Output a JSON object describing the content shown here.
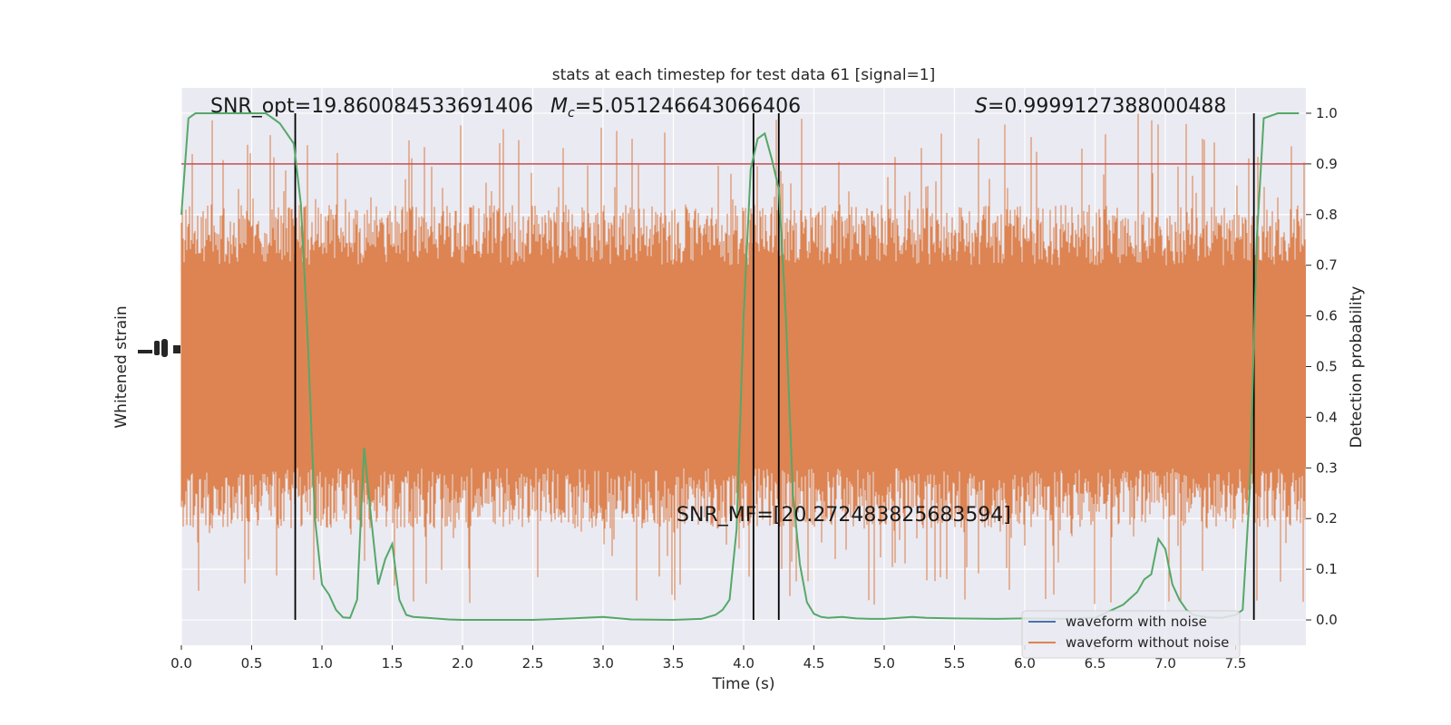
{
  "chart_data": {
    "type": "line",
    "title": "stats at each timestep for test data 61 [signal=1]",
    "xlabel": "Time (s)",
    "ylabel_left": "Whitened strain",
    "ylabel_right": "Detection probability",
    "xlim": [
      0,
      8
    ],
    "ylim_right": [
      -0.05,
      1.05
    ],
    "x_ticks": [
      "0.0",
      "0.5",
      "1.0",
      "1.5",
      "2.0",
      "2.5",
      "3.0",
      "3.5",
      "4.0",
      "4.5",
      "5.0",
      "5.5",
      "6.0",
      "6.5",
      "7.0",
      "7.5"
    ],
    "x_tick_values": [
      0,
      0.5,
      1,
      1.5,
      2,
      2.5,
      3,
      3.5,
      4,
      4.5,
      5,
      5.5,
      6,
      6.5,
      7,
      7.5
    ],
    "y_ticks_right": [
      "0.0",
      "0.1",
      "0.2",
      "0.3",
      "0.4",
      "0.5",
      "0.6",
      "0.7",
      "0.8",
      "0.9",
      "1.0"
    ],
    "y_tick_values_right": [
      0,
      0.1,
      0.2,
      0.3,
      0.4,
      0.5,
      0.6,
      0.7,
      0.8,
      0.9,
      1.0
    ],
    "threshold": 0.9,
    "vertical_lines_x": [
      0.81,
      4.07,
      4.25,
      7.63
    ],
    "annotations": {
      "snr_opt": "SNR_opt=19.860084533691406",
      "mc_symbol": "M",
      "mc_sub": "c",
      "mc_value": "=5.051246643066406",
      "s_symbol": "S",
      "s_value": "=0.9999127388000488",
      "snr_mf": "SNR_MF=[20.272483825683594]"
    },
    "series": [
      {
        "name": "waveform with noise",
        "color": "#4c72b0",
        "description_values": "hidden beneath orange trace"
      },
      {
        "name": "waveform without noise",
        "color": "#dd8452",
        "band_core": [
          0.3,
          0.7
        ],
        "spike_extent": [
          0.0,
          1.0
        ]
      },
      {
        "name": "detection probability",
        "color": "#55a868",
        "x": [
          0.0,
          0.05,
          0.1,
          0.15,
          0.2,
          0.3,
          0.4,
          0.5,
          0.6,
          0.65,
          0.7,
          0.75,
          0.8,
          0.85,
          0.9,
          0.95,
          1.0,
          1.05,
          1.1,
          1.15,
          1.2,
          1.25,
          1.3,
          1.35,
          1.4,
          1.45,
          1.5,
          1.55,
          1.6,
          1.65,
          1.7,
          1.75,
          1.8,
          1.9,
          2.0,
          2.2,
          2.5,
          2.7,
          3.0,
          3.2,
          3.5,
          3.7,
          3.8,
          3.85,
          3.9,
          3.95,
          4.0,
          4.05,
          4.1,
          4.15,
          4.2,
          4.25,
          4.3,
          4.35,
          4.4,
          4.45,
          4.5,
          4.55,
          4.6,
          4.7,
          4.8,
          4.9,
          5.0,
          5.2,
          5.3,
          5.5,
          5.8,
          6.0,
          6.3,
          6.5,
          6.7,
          6.8,
          6.85,
          6.9,
          6.95,
          7.0,
          7.05,
          7.1,
          7.15,
          7.2,
          7.3,
          7.4,
          7.5,
          7.55,
          7.6,
          7.65,
          7.7,
          7.8,
          7.95
        ],
        "y": [
          0.8,
          0.99,
          1.0,
          1.0,
          1.0,
          1.0,
          1.0,
          1.0,
          1.0,
          0.99,
          0.98,
          0.96,
          0.94,
          0.82,
          0.55,
          0.2,
          0.07,
          0.05,
          0.02,
          0.005,
          0.004,
          0.04,
          0.34,
          0.2,
          0.07,
          0.12,
          0.15,
          0.04,
          0.01,
          0.006,
          0.005,
          0.004,
          0.003,
          0.001,
          0.0,
          0.0,
          0.0,
          0.002,
          0.006,
          0.001,
          0.0,
          0.002,
          0.01,
          0.02,
          0.04,
          0.18,
          0.6,
          0.89,
          0.95,
          0.96,
          0.91,
          0.85,
          0.6,
          0.25,
          0.11,
          0.035,
          0.012,
          0.006,
          0.004,
          0.006,
          0.003,
          0.002,
          0.002,
          0.006,
          0.004,
          0.003,
          0.002,
          0.003,
          0.002,
          0.004,
          0.03,
          0.055,
          0.08,
          0.09,
          0.16,
          0.14,
          0.07,
          0.04,
          0.02,
          0.01,
          0.005,
          0.004,
          0.01,
          0.02,
          0.25,
          0.75,
          0.99,
          1.0,
          1.0
        ]
      }
    ],
    "legend": {
      "placement": "lower-right",
      "entries": [
        "waveform with noise",
        "waveform without noise"
      ]
    },
    "grid": true,
    "background_color": "#eaeaf2",
    "threshold_color": "#c44e52",
    "vline_color": "#000000"
  }
}
